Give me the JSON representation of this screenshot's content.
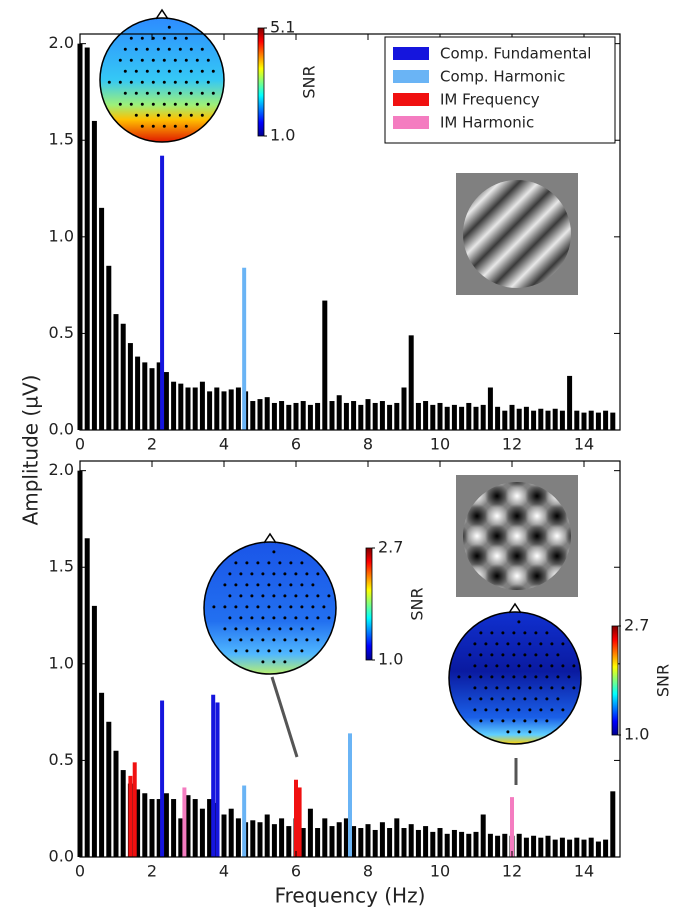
{
  "chart_data": [
    {
      "type": "bar",
      "ylabel": "Amplitude (µV)",
      "x": [
        0,
        0.2,
        0.4,
        0.6,
        0.8,
        1,
        1.2,
        1.4,
        1.6,
        1.8,
        2,
        2.2,
        2.4,
        2.6,
        2.8,
        3,
        3.2,
        3.4,
        3.6,
        3.8,
        4,
        4.2,
        4.4,
        4.6,
        4.8,
        5,
        5.2,
        5.4,
        5.6,
        5.8,
        6,
        6.2,
        6.4,
        6.6,
        6.8,
        7,
        7.2,
        7.4,
        7.6,
        7.8,
        8,
        8.2,
        8.4,
        8.6,
        8.8,
        9,
        9.2,
        9.4,
        9.6,
        9.8,
        10,
        10.2,
        10.4,
        10.6,
        10.8,
        11,
        11.2,
        11.4,
        11.6,
        11.8,
        12,
        12.2,
        12.4,
        12.6,
        12.8,
        13,
        13.2,
        13.4,
        13.6,
        13.8,
        14,
        14.2,
        14.4,
        14.6,
        14.8
      ],
      "values": [
        2.0,
        1.98,
        1.6,
        1.15,
        0.85,
        0.6,
        0.55,
        0.45,
        0.38,
        0.35,
        0.32,
        0.35,
        0.3,
        0.25,
        0.24,
        0.22,
        0.22,
        0.25,
        0.2,
        0.22,
        0.2,
        0.21,
        0.22,
        0.2,
        0.15,
        0.16,
        0.17,
        0.14,
        0.15,
        0.13,
        0.14,
        0.15,
        0.13,
        0.14,
        0.67,
        0.15,
        0.18,
        0.14,
        0.15,
        0.13,
        0.16,
        0.14,
        0.15,
        0.13,
        0.14,
        0.22,
        0.49,
        0.14,
        0.15,
        0.13,
        0.14,
        0.12,
        0.13,
        0.12,
        0.14,
        0.12,
        0.13,
        0.22,
        0.12,
        0.1,
        0.13,
        0.11,
        0.12,
        0.1,
        0.11,
        0.1,
        0.11,
        0.1,
        0.28,
        0.1,
        0.09,
        0.1,
        0.09,
        0.1,
        0.09
      ],
      "color": "#000000",
      "series": [
        {
          "name": "Comp. Fundamental",
          "color": "#1515dd",
          "x": [
            2.28
          ],
          "values": [
            1.42
          ]
        },
        {
          "name": "Comp. Harmonic",
          "color": "#6ab4f5",
          "x": [
            4.56
          ],
          "values": [
            0.84
          ]
        },
        {
          "name": "IM Frequency",
          "color": "#f01010",
          "x": [],
          "values": []
        },
        {
          "name": "IM Harmonic",
          "color": "#f47cc0",
          "x": [],
          "values": []
        }
      ],
      "legend": "upper right",
      "xlim": [
        0,
        15
      ],
      "xticks": [
        0,
        2,
        4,
        6,
        8,
        10,
        12,
        14
      ],
      "ylim": [
        0,
        2.05
      ],
      "yticks": [
        {
          "value": 0,
          "label": "0.0"
        },
        0.5,
        {
          "value": 1,
          "label": "1.0"
        },
        1.5,
        {
          "value": 2,
          "label": "2.0"
        }
      ],
      "colorbars": [
        {
          "label": "SNR",
          "ticks": [
            {
              "value": 1,
              "label": "1.0"
            },
            5.1
          ]
        }
      ]
    },
    {
      "type": "bar",
      "xlabel": "Frequency (Hz)",
      "x": [
        0,
        0.2,
        0.4,
        0.6,
        0.8,
        1,
        1.2,
        1.4,
        1.6,
        1.8,
        2,
        2.2,
        2.4,
        2.6,
        2.8,
        3,
        3.2,
        3.4,
        3.6,
        3.8,
        4,
        4.2,
        4.4,
        4.6,
        4.8,
        5,
        5.2,
        5.4,
        5.6,
        5.8,
        6,
        6.2,
        6.4,
        6.6,
        6.8,
        7,
        7.2,
        7.4,
        7.6,
        7.8,
        8,
        8.2,
        8.4,
        8.6,
        8.8,
        9,
        9.2,
        9.4,
        9.6,
        9.8,
        10,
        10.2,
        10.4,
        10.6,
        10.8,
        11,
        11.2,
        11.4,
        11.6,
        11.8,
        12,
        12.2,
        12.4,
        12.6,
        12.8,
        13,
        13.2,
        13.4,
        13.6,
        13.8,
        14,
        14.2,
        14.4,
        14.6,
        14.8
      ],
      "values": [
        2.0,
        1.65,
        1.3,
        0.85,
        0.7,
        0.55,
        0.45,
        0.38,
        0.35,
        0.33,
        0.3,
        0.3,
        0.33,
        0.3,
        0.2,
        0.32,
        0.3,
        0.25,
        0.3,
        0.28,
        0.22,
        0.25,
        0.2,
        0.18,
        0.19,
        0.18,
        0.22,
        0.17,
        0.2,
        0.16,
        0.2,
        0.15,
        0.25,
        0.15,
        0.2,
        0.16,
        0.18,
        0.2,
        0.16,
        0.15,
        0.17,
        0.14,
        0.18,
        0.15,
        0.2,
        0.15,
        0.17,
        0.14,
        0.16,
        0.13,
        0.15,
        0.12,
        0.14,
        0.13,
        0.12,
        0.13,
        0.22,
        0.12,
        0.11,
        0.12,
        0.11,
        0.12,
        0.1,
        0.11,
        0.1,
        0.11,
        0.09,
        0.1,
        0.09,
        0.1,
        0.09,
        0.1,
        0.08,
        0.09,
        0.34
      ],
      "color": "#000000",
      "series": [
        {
          "color": "#1515dd",
          "x": [
            2.28,
            3.7,
            3.82
          ],
          "values": [
            0.81,
            0.84,
            0.8
          ]
        },
        {
          "color": "#6ab4f5",
          "x": [
            4.56,
            7.5
          ],
          "values": [
            0.37,
            0.64
          ]
        },
        {
          "color": "#f01010",
          "x": [
            1.4,
            1.52,
            6.0,
            6.1
          ],
          "values": [
            0.42,
            0.49,
            0.4,
            0.36
          ]
        },
        {
          "color": "#f47cc0",
          "x": [
            2.9,
            12.0
          ],
          "values": [
            0.36,
            0.31
          ]
        }
      ],
      "xlim": [
        0,
        15
      ],
      "xticks": [
        0,
        2,
        4,
        6,
        8,
        10,
        12,
        14
      ],
      "ylim": [
        0,
        2.05
      ],
      "yticks": [
        {
          "value": 0,
          "label": "0.0"
        },
        0.5,
        {
          "value": 1,
          "label": "1.0"
        },
        1.5,
        {
          "value": 2,
          "label": "2.0"
        }
      ],
      "colorbars": [
        {
          "label": "SNR",
          "ticks": [
            {
              "value": 1,
              "label": "1.0"
            },
            2.7
          ]
        },
        {
          "label": "SNR",
          "ticks": [
            {
              "value": 1,
              "label": "1.0"
            },
            2.7
          ]
        }
      ]
    }
  ]
}
